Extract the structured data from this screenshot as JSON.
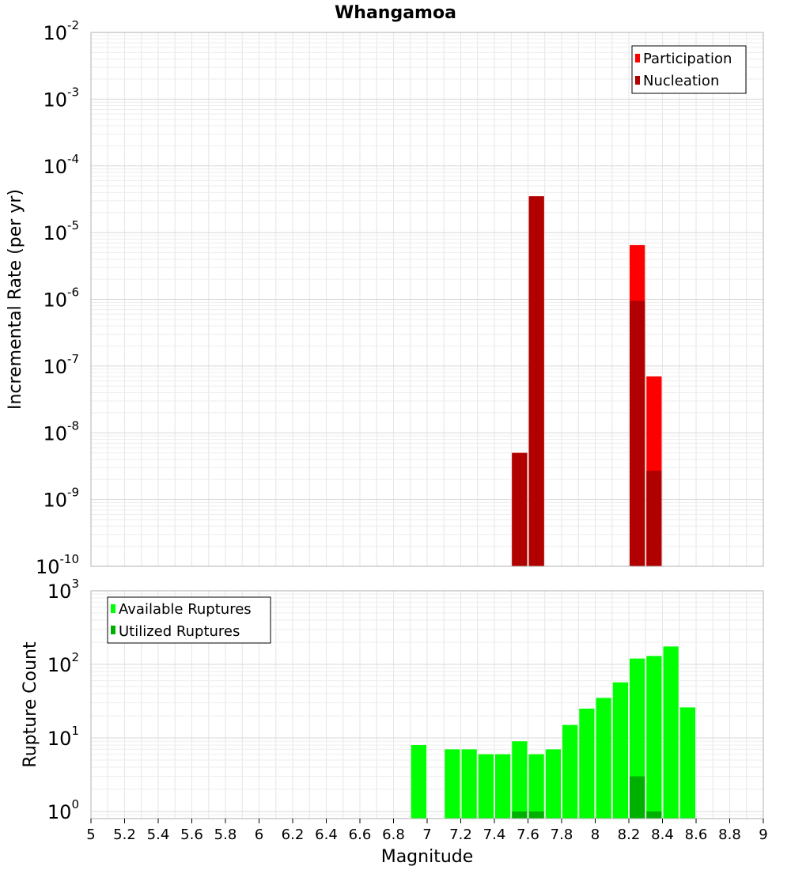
{
  "title": "Whangamoa",
  "x_axis": {
    "label": "Magnitude",
    "ticks": [
      "5",
      "5.2",
      "5.4",
      "5.6",
      "5.8",
      "6",
      "6.2",
      "6.4",
      "6.6",
      "6.8",
      "7",
      "7.2",
      "7.4",
      "7.6",
      "7.8",
      "8",
      "8.2",
      "8.4",
      "8.6",
      "8.8",
      "9"
    ]
  },
  "colors": {
    "participation": "#ff0000",
    "nucleation": "#b00000",
    "available": "#00ff00",
    "utilized": "#00b000",
    "grid": "#e6e6e6",
    "frame": "#b0b0b0"
  },
  "chart_data": [
    {
      "type": "bar",
      "title": "Whangamoa",
      "xlabel": "Magnitude",
      "ylabel": "Incremental Rate (per yr)",
      "y_scale": "log",
      "xlim": [
        5,
        9
      ],
      "ylim": [
        1e-10,
        0.01
      ],
      "y_ticks": [
        {
          "base": "10",
          "exp": "-2"
        },
        {
          "base": "10",
          "exp": "-3"
        },
        {
          "base": "10",
          "exp": "-4"
        },
        {
          "base": "10",
          "exp": "-5"
        },
        {
          "base": "10",
          "exp": "-6"
        },
        {
          "base": "10",
          "exp": "-7"
        },
        {
          "base": "10",
          "exp": "-8"
        },
        {
          "base": "10",
          "exp": "-9"
        },
        {
          "base": "10",
          "exp": "-10"
        }
      ],
      "legend": {
        "position": "top-right",
        "entries": [
          "Participation",
          "Nucleation"
        ]
      },
      "bin_width": 0.1,
      "series": [
        {
          "name": "Participation",
          "x": [
            7.55,
            7.65,
            8.25,
            8.35
          ],
          "values": [
            5e-09,
            3.5e-05,
            6.5e-06,
            7e-08
          ]
        },
        {
          "name": "Nucleation",
          "x": [
            7.55,
            7.65,
            8.25,
            8.35
          ],
          "values": [
            5e-09,
            3.5e-05,
            9.5e-07,
            2.7e-09
          ]
        }
      ]
    },
    {
      "type": "bar",
      "xlabel": "Magnitude",
      "ylabel": "Rupture Count",
      "y_scale": "log",
      "xlim": [
        5,
        9
      ],
      "ylim": [
        0.8,
        1000
      ],
      "y_ticks": [
        {
          "base": "10",
          "exp": "3"
        },
        {
          "base": "10",
          "exp": "2"
        },
        {
          "base": "10",
          "exp": "1"
        },
        {
          "base": "10",
          "exp": "0"
        }
      ],
      "legend": {
        "position": "top-left",
        "entries": [
          "Available Ruptures",
          "Utilized Ruptures"
        ]
      },
      "bin_width": 0.1,
      "series": [
        {
          "name": "Available Ruptures",
          "x": [
            6.95,
            7.15,
            7.25,
            7.35,
            7.45,
            7.55,
            7.65,
            7.75,
            7.85,
            7.95,
            8.05,
            8.15,
            8.25,
            8.35,
            8.45,
            8.55
          ],
          "values": [
            8,
            7,
            7,
            6,
            6,
            9,
            6,
            7,
            15,
            25,
            35,
            57,
            120,
            130,
            175,
            26
          ]
        },
        {
          "name": "Utilized Ruptures",
          "x": [
            7.55,
            7.65,
            8.25,
            8.35
          ],
          "values": [
            1,
            1,
            3,
            1
          ]
        }
      ]
    }
  ]
}
